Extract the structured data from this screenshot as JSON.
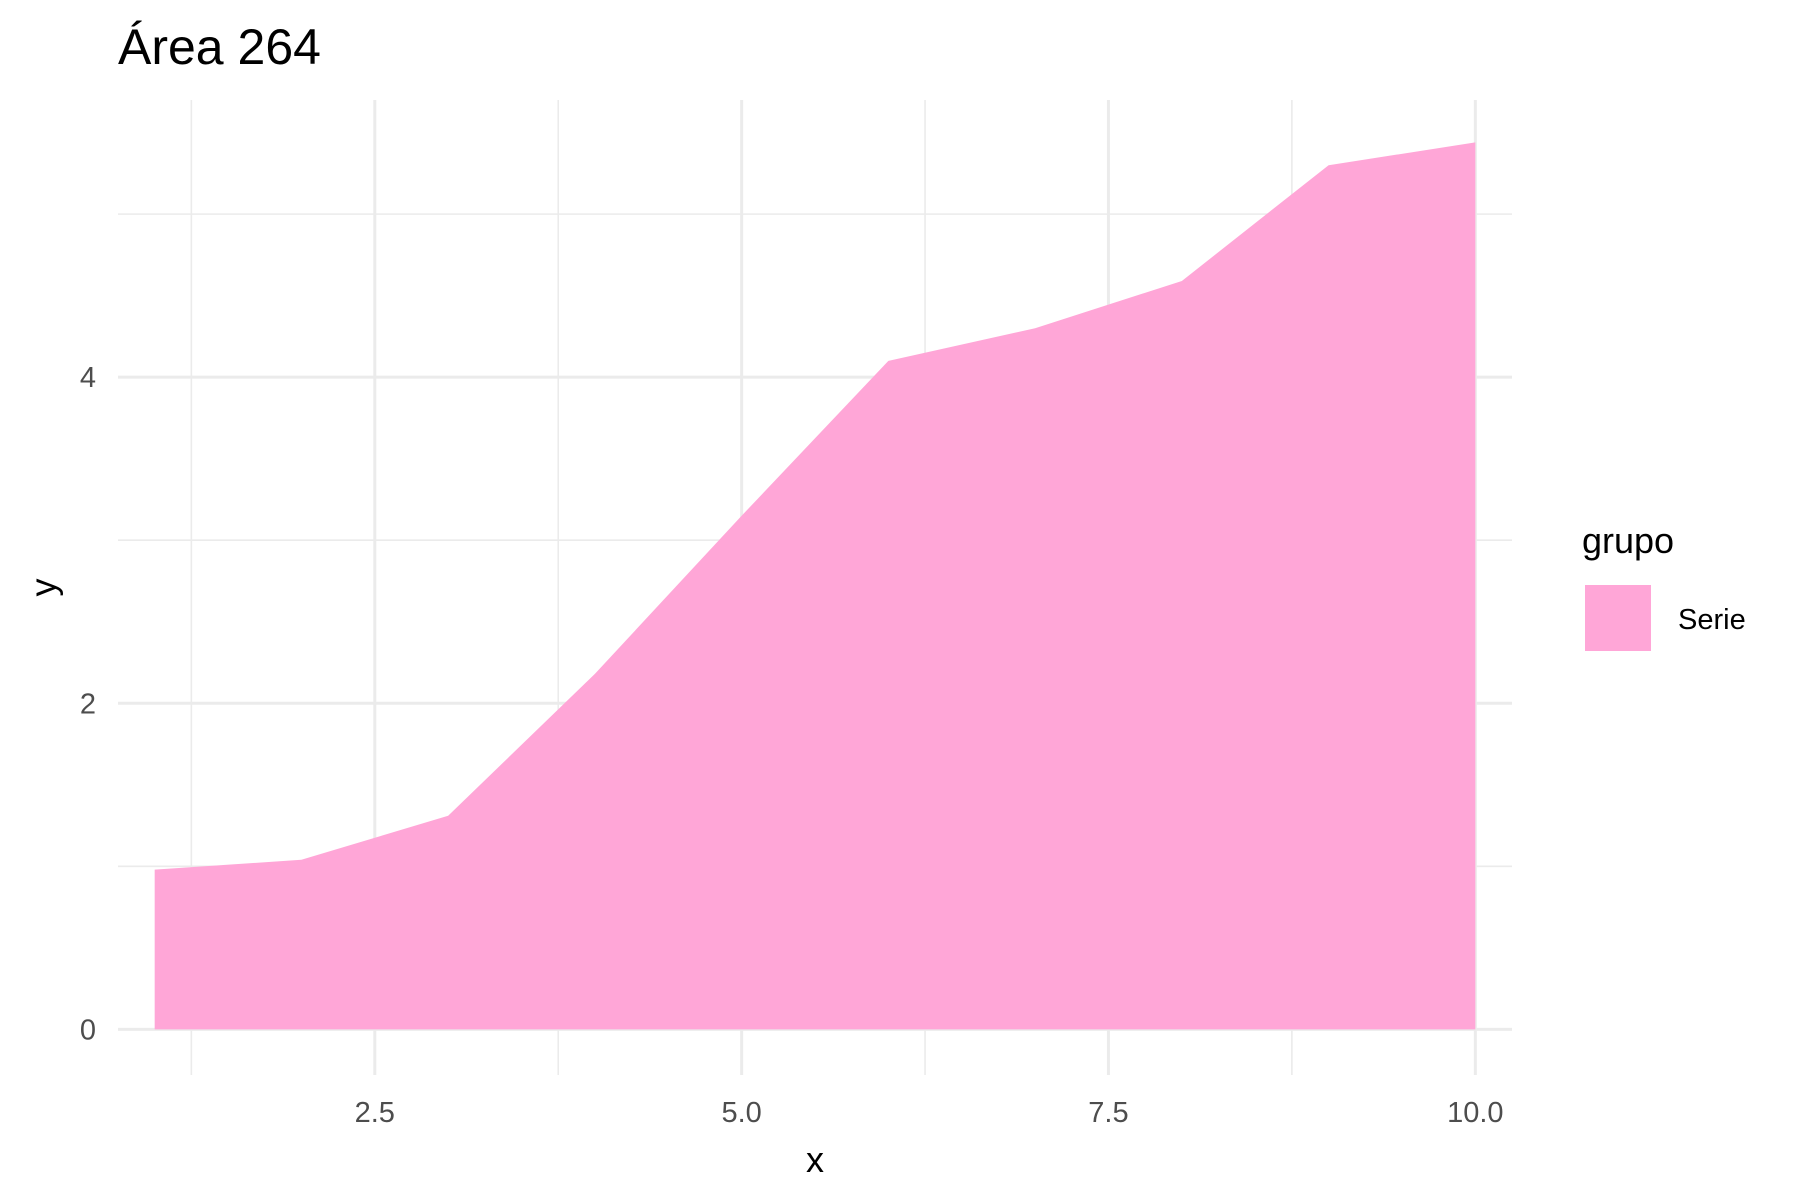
{
  "chart_data": {
    "type": "area",
    "title": "Área 264",
    "xlabel": "x",
    "ylabel": "y",
    "xlim": [
      0.75,
      10.25
    ],
    "ylim": [
      -0.28,
      5.7
    ],
    "x_ticks": [
      2.5,
      5.0,
      7.5,
      10.0
    ],
    "x_tick_labels": [
      "2.5",
      "5.0",
      "7.5",
      "10.0"
    ],
    "x_minor_ticks": [
      1.25,
      3.75,
      6.25,
      8.75
    ],
    "y_ticks": [
      0,
      2,
      4
    ],
    "y_tick_labels": [
      "0",
      "2",
      "4"
    ],
    "y_minor_ticks": [
      1,
      3,
      5
    ],
    "grid": true,
    "legend": {
      "title": "grupo",
      "placement": "right"
    },
    "series": [
      {
        "name": "Serie",
        "color": "#FFA6D7",
        "x": [
          1,
          2,
          3,
          4,
          5,
          6,
          7,
          8,
          9,
          10
        ],
        "values": [
          0.98,
          1.04,
          1.31,
          2.18,
          3.15,
          4.1,
          4.3,
          4.59,
          5.3,
          5.44
        ]
      }
    ]
  }
}
